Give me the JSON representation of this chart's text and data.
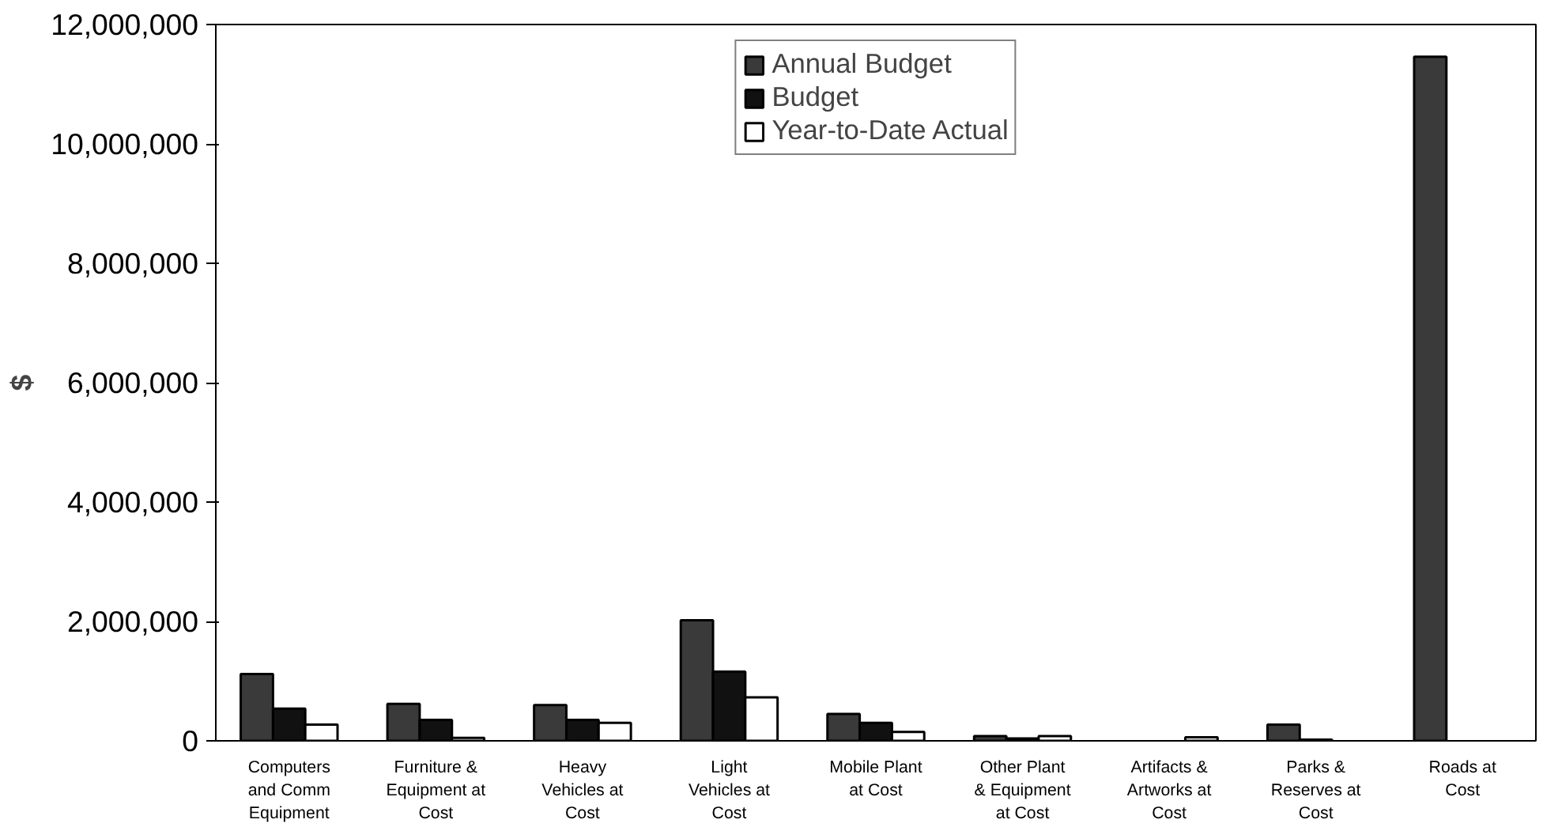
{
  "chart_data": {
    "type": "bar",
    "ylabel": "$",
    "categories": [
      "Computers and Comm Equipment",
      "Furniture & Equipment at Cost",
      "Heavy Vehicles at Cost",
      "Light Vehicles at Cost",
      "Mobile Plant at Cost",
      "Other Plant & Equipment at Cost",
      "Artifacts & Artworks at Cost",
      "Parks & Reserves at Cost",
      "Roads at Cost"
    ],
    "series": [
      {
        "name": "Annual Budget",
        "color": "#3a3a3a",
        "values": [
          1120000,
          620000,
          600000,
          2020000,
          450000,
          80000,
          null,
          270000,
          11460000
        ]
      },
      {
        "name": "Budget",
        "color": "#111111",
        "values": [
          540000,
          350000,
          350000,
          1160000,
          300000,
          40000,
          null,
          20000,
          null
        ]
      },
      {
        "name": "Year-to-Date Actual",
        "color": "#ffffff",
        "values": [
          270000,
          50000,
          300000,
          730000,
          150000,
          80000,
          60000,
          null,
          null
        ]
      }
    ],
    "ylim": [
      0,
      12000000
    ],
    "yticks": [
      {
        "value": 0,
        "label": "0"
      },
      {
        "value": 2000000,
        "label": "2,000,000"
      },
      {
        "value": 4000000,
        "label": "4,000,000"
      },
      {
        "value": 6000000,
        "label": "6,000,000"
      },
      {
        "value": 8000000,
        "label": "8,000,000"
      },
      {
        "value": 10000000,
        "label": "10,000,000"
      },
      {
        "value": 12000000,
        "label": "12,000,000"
      }
    ],
    "grid": false,
    "legend": "top"
  }
}
